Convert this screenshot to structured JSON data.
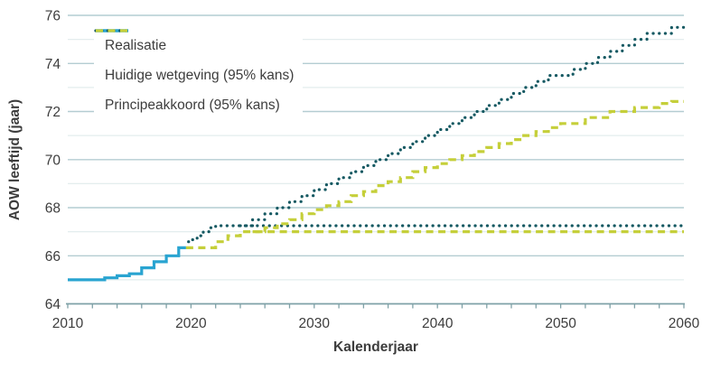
{
  "chart_data": {
    "type": "line",
    "title": "",
    "xlabel": "Kalenderjaar",
    "ylabel": "AOW leeftijd (jaar)",
    "xlim": [
      2010,
      2060
    ],
    "ylim": [
      64,
      76
    ],
    "x_tick_labels": [
      "2010",
      "2020",
      "2030",
      "2040",
      "2050",
      "2060"
    ],
    "x_tick_values": [
      2010,
      2020,
      2030,
      2040,
      2050,
      2060
    ],
    "x_minor_tick_step": 2,
    "y_tick_labels": [
      "64",
      "66",
      "68",
      "70",
      "72",
      "74",
      "76"
    ],
    "y_tick_values": [
      64,
      66,
      68,
      70,
      72,
      74,
      76
    ],
    "y_grid_step": 1,
    "grid": "horizontal",
    "legend_position": "top-left",
    "colors": {
      "realisatie": "#29a4d1",
      "huidige_wetgeving": "#155962",
      "principeakkoord": "#c5cf3a",
      "grid_major": "#b4cdd2",
      "grid_minor": "#e3edee",
      "axis": "#7fa1a7",
      "text": "#3d3d3d"
    },
    "legend": {
      "items": [
        {
          "label": "Realisatie",
          "color": "#29a4d1",
          "style": "solid"
        },
        {
          "label": "Huidige wetgeving (95% kans)",
          "color": "#155962",
          "style": "dotted"
        },
        {
          "label": "Principeakkoord (95% kans)",
          "color": "#c5cf3a",
          "style": "dashed"
        }
      ]
    },
    "series": [
      {
        "key": "realisatie",
        "label": "Realisatie",
        "color": "#29a4d1",
        "style": "solid",
        "interpolation": "step-after",
        "points": [
          [
            2010,
            65
          ],
          [
            2013,
            65.083
          ],
          [
            2014,
            65.167
          ],
          [
            2015,
            65.25
          ],
          [
            2016,
            65.5
          ],
          [
            2017,
            65.75
          ],
          [
            2018,
            66
          ],
          [
            2019,
            66.333
          ],
          [
            2019.6,
            66.333
          ]
        ]
      },
      {
        "key": "huidige-wetgeving-ondergrens",
        "label": "Huidige wetgeving (95% kans)",
        "color": "#155962",
        "style": "dotted",
        "interpolation": "step-after",
        "points": [
          [
            2019.8,
            66.583
          ],
          [
            2020,
            66.667
          ],
          [
            2020.5,
            66.833
          ],
          [
            2021,
            67
          ],
          [
            2021.5,
            67.167
          ],
          [
            2022,
            67.25
          ],
          [
            2060,
            67.25
          ]
        ]
      },
      {
        "key": "huidige-wetgeving-bovengrens",
        "label": "Huidige wetgeving (95% kans)",
        "color": "#155962",
        "style": "dotted",
        "interpolation": "step-after",
        "points": [
          [
            2024,
            67.25
          ],
          [
            2025,
            67.5
          ],
          [
            2026,
            67.75
          ],
          [
            2027,
            68
          ],
          [
            2028,
            68.25
          ],
          [
            2029,
            68.5
          ],
          [
            2030,
            68.75
          ],
          [
            2031,
            69
          ],
          [
            2032,
            69.25
          ],
          [
            2033,
            69.5
          ],
          [
            2034,
            69.75
          ],
          [
            2035,
            70
          ],
          [
            2036,
            70.25
          ],
          [
            2037,
            70.5
          ],
          [
            2038,
            70.75
          ],
          [
            2039,
            71
          ],
          [
            2040,
            71.25
          ],
          [
            2041,
            71.5
          ],
          [
            2042,
            71.75
          ],
          [
            2043,
            72
          ],
          [
            2044,
            72.25
          ],
          [
            2045,
            72.5
          ],
          [
            2046,
            72.75
          ],
          [
            2047,
            73
          ],
          [
            2048,
            73.25
          ],
          [
            2049,
            73.5
          ],
          [
            2051,
            73.75
          ],
          [
            2052,
            74
          ],
          [
            2053,
            74.25
          ],
          [
            2054,
            74.5
          ],
          [
            2055,
            74.75
          ],
          [
            2056,
            75
          ],
          [
            2057,
            75.25
          ],
          [
            2059,
            75.5
          ],
          [
            2060,
            75.5
          ]
        ]
      },
      {
        "key": "principeakkoord-ondergrens",
        "label": "Principeakkoord (95% kans)",
        "color": "#c5cf3a",
        "style": "dashed",
        "interpolation": "step-after",
        "points": [
          [
            2019.6,
            66.333
          ],
          [
            2022,
            66.583
          ],
          [
            2023,
            66.833
          ],
          [
            2024,
            67
          ],
          [
            2060,
            67
          ]
        ]
      },
      {
        "key": "principeakkoord-bovengrens",
        "label": "Principeakkoord (95% kans)",
        "color": "#c5cf3a",
        "style": "dashed",
        "interpolation": "step-after",
        "points": [
          [
            2025,
            67
          ],
          [
            2026,
            67.167
          ],
          [
            2027,
            67.333
          ],
          [
            2028,
            67.5
          ],
          [
            2029,
            67.75
          ],
          [
            2030,
            67.917
          ],
          [
            2031,
            68.083
          ],
          [
            2032,
            68.25
          ],
          [
            2033,
            68.5
          ],
          [
            2034,
            68.667
          ],
          [
            2035,
            68.917
          ],
          [
            2036,
            69.083
          ],
          [
            2037,
            69.25
          ],
          [
            2038,
            69.5
          ],
          [
            2039,
            69.667
          ],
          [
            2040,
            69.833
          ],
          [
            2041,
            70
          ],
          [
            2042,
            70.167
          ],
          [
            2043,
            70.333
          ],
          [
            2044,
            70.5
          ],
          [
            2045,
            70.667
          ],
          [
            2046,
            70.833
          ],
          [
            2047,
            71
          ],
          [
            2048,
            71.167
          ],
          [
            2049,
            71.333
          ],
          [
            2050,
            71.5
          ],
          [
            2052,
            71.75
          ],
          [
            2054,
            72
          ],
          [
            2056,
            72.167
          ],
          [
            2058,
            72.333
          ],
          [
            2059,
            72.417
          ],
          [
            2060,
            72.417
          ]
        ]
      }
    ]
  }
}
